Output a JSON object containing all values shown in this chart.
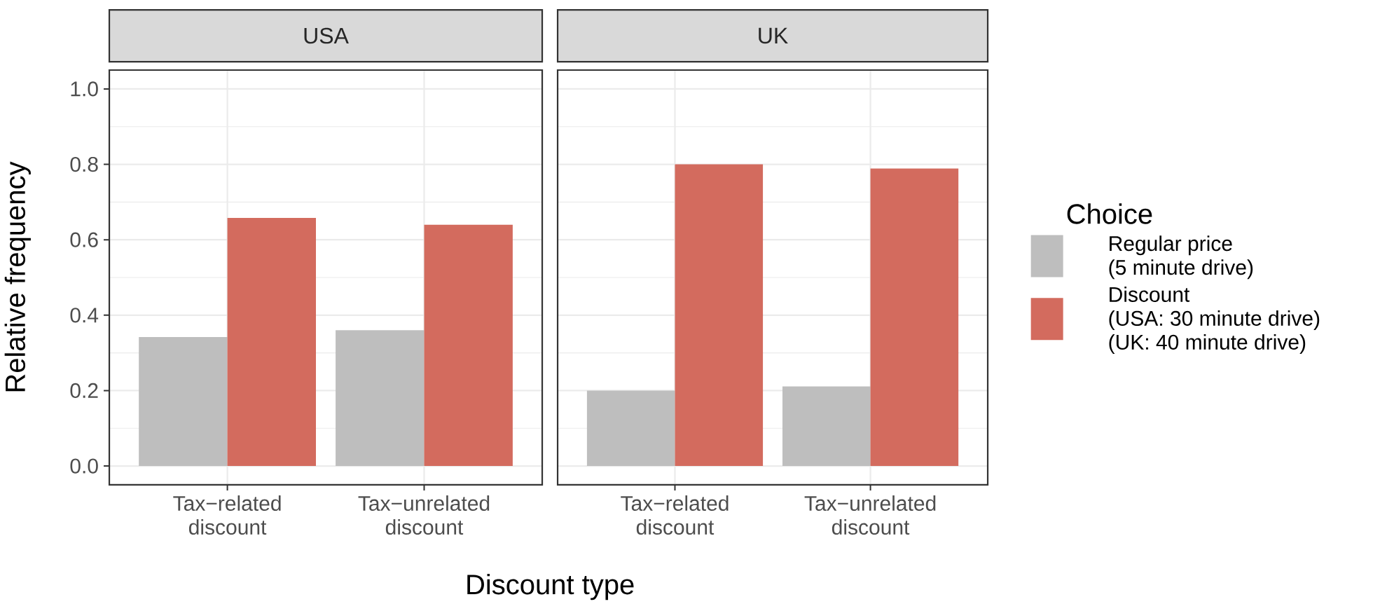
{
  "chart_data": [
    {
      "type": "bar",
      "title": "USA",
      "xlabel": "Discount type",
      "ylabel": "Relative frequency",
      "categories": [
        "Tax−related discount",
        "Tax−unrelated discount"
      ],
      "series": [
        {
          "color": "#bebebe",
          "values": [
            0.342,
            0.36
          ]
        },
        {
          "color": "#d36b5e",
          "values": [
            0.658,
            0.64
          ]
        }
      ],
      "ylim": [
        -0.05,
        1.05
      ],
      "yticks": [
        {
          "value": 0,
          "label": "0.0"
        },
        {
          "value": 0.2,
          "label": "0.2"
        },
        {
          "value": 0.4,
          "label": "0.4"
        },
        {
          "value": 0.6,
          "label": "0.6"
        },
        {
          "value": 0.8,
          "label": "0.8"
        },
        {
          "value": 1,
          "label": "1.0"
        }
      ],
      "grid": true
    },
    {
      "type": "bar",
      "title": "UK",
      "legend_title": "Choice",
      "categories": [
        "Tax−related discount",
        "Tax−unrelated discount"
      ],
      "series": [
        {
          "name": "Regular price\n(5 minute drive)",
          "color": "#bebebe",
          "values": [
            0.2,
            0.211
          ]
        },
        {
          "name": "Discount\n(USA: 30 minute drive)\n(UK: 40 minute drive)",
          "color": "#d36b5e",
          "values": [
            0.8,
            0.789
          ]
        }
      ],
      "ylim": [
        -0.05,
        1.05
      ],
      "yticks": [
        {
          "value": 0,
          "label": null
        },
        {
          "value": 0.2,
          "label": null
        },
        {
          "value": 0.4,
          "label": null
        },
        {
          "value": 0.6,
          "label": null
        },
        {
          "value": 0.8,
          "label": null
        },
        {
          "value": 1,
          "label": null
        }
      ],
      "tick_labels": "x",
      "grid": true,
      "legend": "right"
    }
  ]
}
